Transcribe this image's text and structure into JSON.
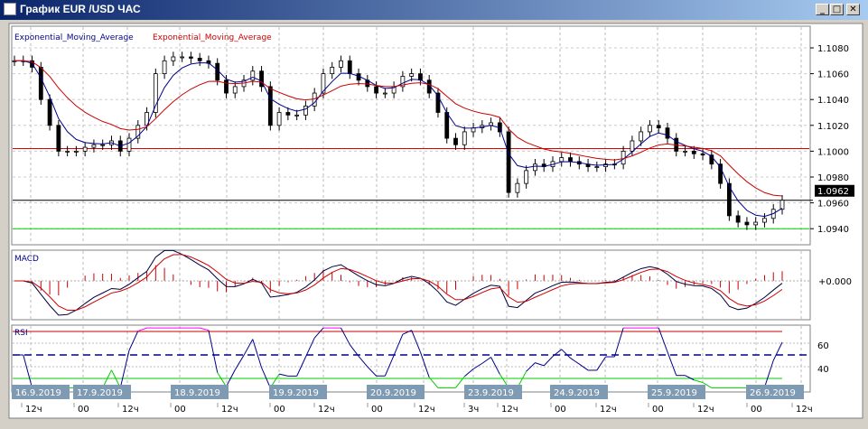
{
  "window": {
    "title": "График EUR /USD  ЧАС",
    "minimize": "_",
    "maximize": "□",
    "close": "✕"
  },
  "legend": {
    "ema_fast": "Exponential_Moving_Average",
    "ema_slow": "Exponential_Moving_Average"
  },
  "colors": {
    "ema_fast": "#00008b",
    "ema_slow": "#cc0000",
    "resistance": "#dd0000",
    "support": "#00cc00",
    "date_label_bg": "#7f9bb4"
  },
  "price_axis": {
    "ticks": [
      "1.1080",
      "1.1060",
      "1.1040",
      "1.1020",
      "1.1000",
      "1.0980",
      "1.0960",
      "1.0940"
    ],
    "current_price": "1.0962",
    "resistance_level": 1.1002,
    "support_level": 1.094
  },
  "macd": {
    "label": "MACD",
    "zero_label": "+0.000"
  },
  "rsi": {
    "label": "RSI",
    "ticks": [
      "60",
      "40"
    ],
    "upper": 70,
    "middle": 50,
    "lower": 30
  },
  "dates": [
    "16.9.2019",
    "17.9.2019",
    "18.9.2019",
    "19.9.2019",
    "20.9.2019",
    "23.9.2019",
    "24.9.2019",
    "25.9.2019",
    "26.9.2019"
  ],
  "hours": [
    "12ч",
    "00",
    "12ч",
    "00",
    "12ч",
    "00",
    "12ч",
    "00",
    "12ч",
    "3ч",
    "12ч",
    "00",
    "12ч",
    "00",
    "12ч",
    "00",
    "12ч"
  ],
  "closes": [
    1.107,
    1.107,
    1.1065,
    1.104,
    1.102,
    1.1,
    1.1,
    1.1,
    1.1003,
    1.1005,
    1.1005,
    1.1008,
    1.1,
    1.101,
    1.102,
    1.103,
    1.106,
    1.107,
    1.1073,
    1.1073,
    1.1072,
    1.107,
    1.1068,
    1.1055,
    1.1045,
    1.105,
    1.1055,
    1.1062,
    1.105,
    1.102,
    1.103,
    1.1028,
    1.1028,
    1.1035,
    1.1045,
    1.106,
    1.1065,
    1.107,
    1.106,
    1.1055,
    1.105,
    1.1045,
    1.1045,
    1.105,
    1.1058,
    1.106,
    1.1055,
    1.1045,
    1.103,
    1.101,
    1.1005,
    1.1015,
    1.1018,
    1.102,
    1.1022,
    1.1015,
    1.0968,
    1.0975,
    1.0985,
    1.099,
    1.0988,
    1.0992,
    1.0995,
    1.0992,
    1.099,
    1.0988,
    1.0988,
    1.099,
    1.099,
    1.1,
    1.1008,
    1.1015,
    1.102,
    1.1018,
    1.101,
    1.1,
    1.1,
    1.0998,
    1.0997,
    1.099,
    1.0975,
    1.095,
    1.0945,
    1.0943,
    1.0945,
    1.0948,
    1.0955,
    1.0962
  ]
}
